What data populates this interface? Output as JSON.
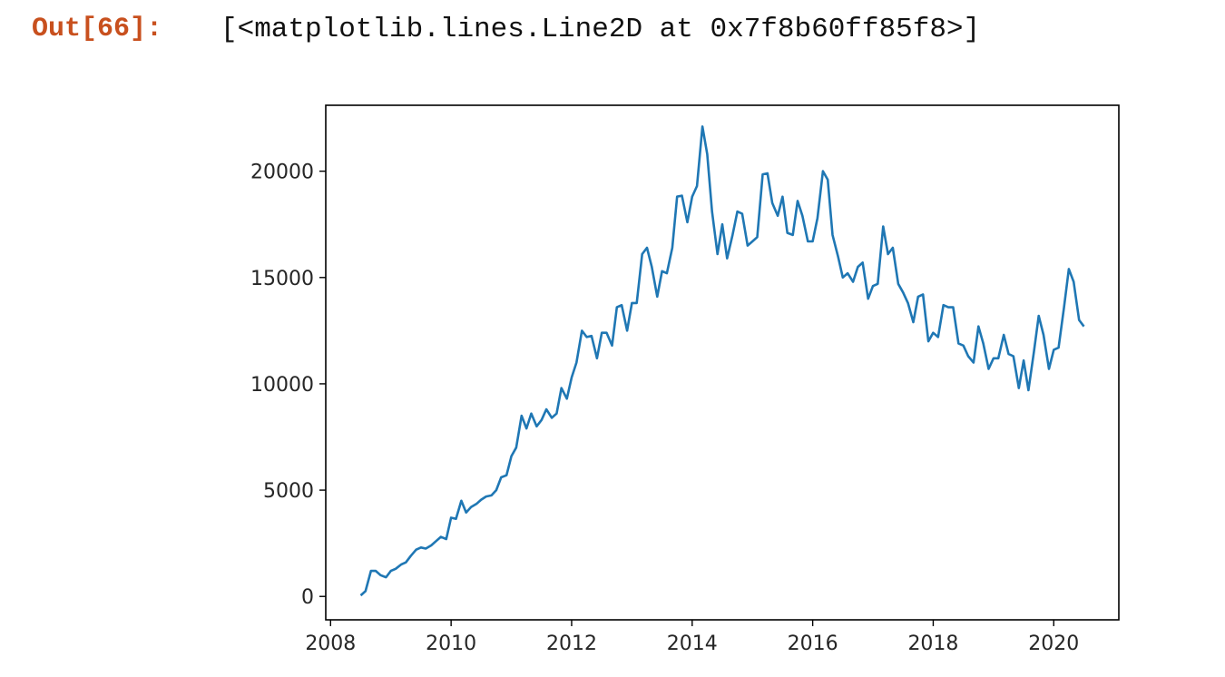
{
  "cell": {
    "prompt": "Out[66]:",
    "output_text": "[<matplotlib.lines.Line2D at 0x7f8b60ff85f8>]"
  },
  "chart_data": {
    "type": "line",
    "title": "",
    "xlabel": "",
    "ylabel": "",
    "xlim": [
      2007.92,
      2021.08
    ],
    "ylim": [
      -1100,
      23100
    ],
    "xticks": [
      2008,
      2010,
      2012,
      2014,
      2016,
      2018,
      2020
    ],
    "xtick_labels": [
      "2008",
      "2010",
      "2012",
      "2014",
      "2016",
      "2018",
      "2020"
    ],
    "yticks": [
      0,
      5000,
      10000,
      15000,
      20000
    ],
    "ytick_labels": [
      "0",
      "5000",
      "10000",
      "15000",
      "20000"
    ],
    "grid": false,
    "legend": false,
    "line_color": "#1f77b4",
    "series": [
      {
        "x": [
          2008.5,
          2008.58,
          2008.67,
          2008.75,
          2008.83,
          2008.92,
          2009.0,
          2009.08,
          2009.17,
          2009.25,
          2009.33,
          2009.42,
          2009.5,
          2009.58,
          2009.67,
          2009.75,
          2009.83,
          2009.92,
          2010.0,
          2010.08,
          2010.17,
          2010.25,
          2010.33,
          2010.42,
          2010.5,
          2010.58,
          2010.67,
          2010.75,
          2010.83,
          2010.92,
          2011.0,
          2011.08,
          2011.17,
          2011.25,
          2011.33,
          2011.42,
          2011.5,
          2011.58,
          2011.67,
          2011.75,
          2011.83,
          2011.92,
          2012.0,
          2012.08,
          2012.17,
          2012.25,
          2012.33,
          2012.42,
          2012.5,
          2012.58,
          2012.67,
          2012.75,
          2012.83,
          2012.92,
          2013.0,
          2013.08,
          2013.17,
          2013.25,
          2013.33,
          2013.42,
          2013.5,
          2013.58,
          2013.67,
          2013.75,
          2013.83,
          2013.92,
          2014.0,
          2014.08,
          2014.17,
          2014.25,
          2014.33,
          2014.42,
          2014.5,
          2014.58,
          2014.67,
          2014.75,
          2014.83,
          2014.92,
          2015.0,
          2015.08,
          2015.17,
          2015.25,
          2015.33,
          2015.42,
          2015.5,
          2015.58,
          2015.67,
          2015.75,
          2015.83,
          2015.92,
          2016.0,
          2016.08,
          2016.17,
          2016.25,
          2016.33,
          2016.42,
          2016.5,
          2016.58,
          2016.67,
          2016.75,
          2016.83,
          2016.92,
          2017.0,
          2017.08,
          2017.17,
          2017.25,
          2017.33,
          2017.42,
          2017.5,
          2017.58,
          2017.67,
          2017.75,
          2017.83,
          2017.92,
          2018.0,
          2018.08,
          2018.17,
          2018.25,
          2018.33,
          2018.42,
          2018.5,
          2018.58,
          2018.67,
          2018.75,
          2018.83,
          2018.92,
          2019.0,
          2019.08,
          2019.17,
          2019.25,
          2019.33,
          2019.42,
          2019.5,
          2019.58,
          2019.67,
          2019.75,
          2019.83,
          2019.92,
          2020.0,
          2020.08,
          2020.17,
          2020.25,
          2020.33,
          2020.42,
          2020.5
        ],
        "y": [
          50,
          250,
          1200,
          1200,
          1000,
          900,
          1200,
          1300,
          1500,
          1600,
          1900,
          2200,
          2300,
          2250,
          2400,
          2600,
          2800,
          2700,
          3700,
          3650,
          4500,
          3950,
          4200,
          4350,
          4550,
          4700,
          4750,
          5000,
          5600,
          5700,
          6600,
          7000,
          8500,
          7900,
          8600,
          8000,
          8300,
          8800,
          8400,
          8600,
          9800,
          9300,
          10300,
          11000,
          12500,
          12200,
          12250,
          11200,
          12400,
          12400,
          11800,
          13600,
          13700,
          12500,
          13800,
          13800,
          16100,
          16400,
          15500,
          14100,
          15300,
          15200,
          16400,
          18800,
          18850,
          17600,
          18800,
          19300,
          22100,
          20800,
          18100,
          16100,
          17500,
          15900,
          17000,
          18100,
          18000,
          16500,
          16700,
          16900,
          19850,
          19900,
          18500,
          17900,
          18800,
          17100,
          17000,
          18600,
          17900,
          16700,
          16700,
          17800,
          20000,
          19600,
          17000,
          16000,
          15000,
          15200,
          14800,
          15500,
          15700,
          14000,
          14600,
          14700,
          17400,
          16100,
          16400,
          14700,
          14300,
          13800,
          12900,
          14100,
          14200,
          12000,
          12400,
          12200,
          13700,
          13600,
          13600,
          11900,
          11800,
          11300,
          11000,
          12700,
          11900,
          10700,
          11200,
          11200,
          12300,
          11400,
          11300,
          9800,
          11100,
          9700,
          11500,
          13200,
          12300,
          10700,
          11600,
          11700,
          13600,
          15400,
          14800,
          13000,
          12700
        ]
      }
    ]
  }
}
